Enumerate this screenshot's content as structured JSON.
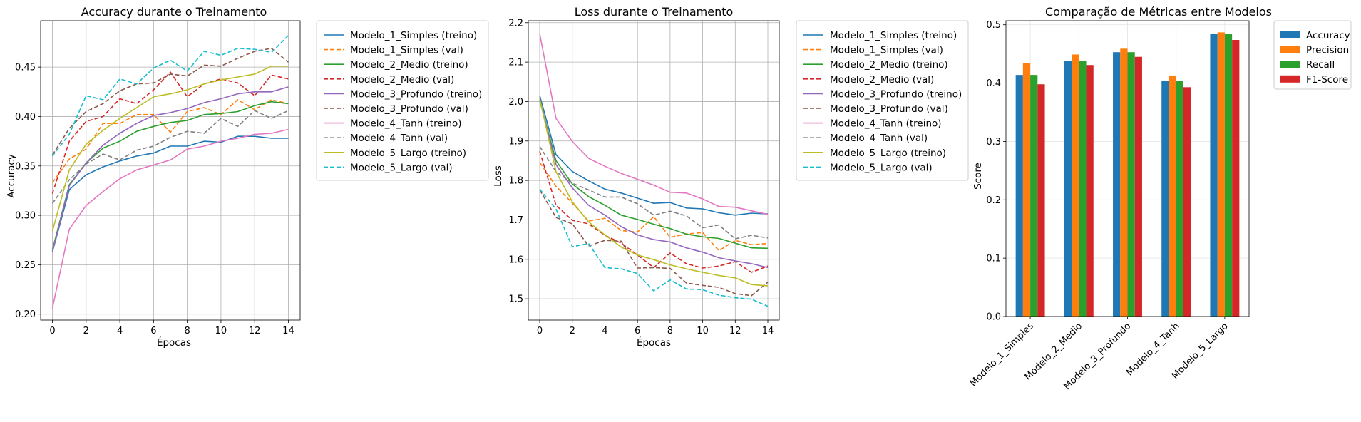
{
  "chart_data": [
    {
      "type": "line",
      "title": "Accuracy durante o Treinamento",
      "xlabel": "Épocas",
      "ylabel": "Accuracy",
      "xlim": [
        -0.7,
        14.7
      ],
      "ylim": [
        0.194,
        0.497
      ],
      "xticks": [
        0,
        2,
        4,
        6,
        8,
        10,
        12,
        14
      ],
      "yticks": [
        0.2,
        0.25,
        0.3,
        0.35,
        0.4,
        0.45
      ],
      "grid": true,
      "legend": "outside-right-top",
      "x": [
        0,
        1,
        2,
        3,
        4,
        5,
        6,
        7,
        8,
        9,
        10,
        11,
        12,
        13,
        14
      ],
      "series": [
        {
          "name": "Modelo_1_Simples (treino)",
          "color": "#1f77b4",
          "dash": "solid",
          "values": [
            0.263,
            0.326,
            0.341,
            0.349,
            0.355,
            0.36,
            0.363,
            0.37,
            0.37,
            0.375,
            0.374,
            0.38,
            0.38,
            0.378,
            0.378
          ]
        },
        {
          "name": "Modelo_1_Simples (val)",
          "color": "#ff7f0e",
          "dash": "dashed",
          "values": [
            0.333,
            0.357,
            0.367,
            0.393,
            0.393,
            0.402,
            0.402,
            0.384,
            0.405,
            0.409,
            0.402,
            0.417,
            0.407,
            0.417,
            0.413
          ]
        },
        {
          "name": "Modelo_2_Medio (treino)",
          "color": "#2ca02c",
          "dash": "solid",
          "values": [
            0.265,
            0.331,
            0.353,
            0.368,
            0.375,
            0.385,
            0.39,
            0.394,
            0.396,
            0.402,
            0.403,
            0.405,
            0.411,
            0.415,
            0.413
          ]
        },
        {
          "name": "Modelo_2_Medio (val)",
          "color": "#d62728",
          "dash": "dashed",
          "values": [
            0.322,
            0.375,
            0.395,
            0.4,
            0.418,
            0.413,
            0.427,
            0.445,
            0.42,
            0.433,
            0.438,
            0.434,
            0.421,
            0.442,
            0.438
          ]
        },
        {
          "name": "Modelo_3_Profundo (treino)",
          "color": "#9467bd",
          "dash": "solid",
          "values": [
            0.263,
            0.33,
            0.353,
            0.371,
            0.383,
            0.393,
            0.401,
            0.404,
            0.408,
            0.414,
            0.418,
            0.423,
            0.425,
            0.425,
            0.43
          ]
        },
        {
          "name": "Modelo_3_Profundo (val)",
          "color": "#8c564b",
          "dash": "dashed",
          "values": [
            0.361,
            0.388,
            0.405,
            0.413,
            0.426,
            0.433,
            0.434,
            0.443,
            0.441,
            0.452,
            0.451,
            0.459,
            0.466,
            0.469,
            0.455
          ]
        },
        {
          "name": "Modelo_4_Tanh (treino)",
          "color": "#e377c2",
          "dash": "solid",
          "values": [
            0.206,
            0.286,
            0.31,
            0.324,
            0.337,
            0.346,
            0.351,
            0.356,
            0.367,
            0.37,
            0.375,
            0.378,
            0.382,
            0.383,
            0.387
          ]
        },
        {
          "name": "Modelo_4_Tanh (val)",
          "color": "#7f7f7f",
          "dash": "dashed",
          "values": [
            0.312,
            0.336,
            0.352,
            0.362,
            0.356,
            0.366,
            0.37,
            0.379,
            0.385,
            0.383,
            0.398,
            0.39,
            0.406,
            0.398,
            0.406
          ]
        },
        {
          "name": "Modelo_5_Largo (treino)",
          "color": "#bcbd22",
          "dash": "solid",
          "values": [
            0.284,
            0.346,
            0.372,
            0.386,
            0.398,
            0.409,
            0.42,
            0.423,
            0.427,
            0.433,
            0.437,
            0.44,
            0.443,
            0.451,
            0.451
          ]
        },
        {
          "name": "Modelo_5_Largo (val)",
          "color": "#17becf",
          "dash": "dashed",
          "values": [
            0.36,
            0.382,
            0.421,
            0.417,
            0.438,
            0.433,
            0.449,
            0.457,
            0.446,
            0.466,
            0.462,
            0.469,
            0.468,
            0.465,
            0.482
          ]
        }
      ]
    },
    {
      "type": "line",
      "title": "Loss durante o Treinamento",
      "xlabel": "Épocas",
      "ylabel": "Loss",
      "xlim": [
        -0.7,
        14.7
      ],
      "ylim": [
        1.446,
        2.205
      ],
      "xticks": [
        0,
        2,
        4,
        6,
        8,
        10,
        12,
        14
      ],
      "yticks": [
        1.5,
        1.6,
        1.7,
        1.8,
        1.9,
        2.0,
        2.1,
        2.2
      ],
      "grid": true,
      "legend": "outside-right-top",
      "x": [
        0,
        1,
        2,
        3,
        4,
        5,
        6,
        7,
        8,
        9,
        10,
        11,
        12,
        13,
        14
      ],
      "series": [
        {
          "name": "Modelo_1_Simples (treino)",
          "color": "#1f77b4",
          "dash": "solid",
          "values": [
            2.015,
            1.865,
            1.823,
            1.799,
            1.778,
            1.768,
            1.755,
            1.742,
            1.744,
            1.73,
            1.728,
            1.718,
            1.712,
            1.717,
            1.715
          ]
        },
        {
          "name": "Modelo_1_Simples (val)",
          "color": "#ff7f0e",
          "dash": "dashed",
          "values": [
            1.846,
            1.785,
            1.743,
            1.697,
            1.704,
            1.673,
            1.669,
            1.708,
            1.656,
            1.664,
            1.668,
            1.622,
            1.648,
            1.637,
            1.64
          ]
        },
        {
          "name": "Modelo_2_Medio (treino)",
          "color": "#2ca02c",
          "dash": "solid",
          "values": [
            2.003,
            1.85,
            1.791,
            1.759,
            1.737,
            1.712,
            1.701,
            1.689,
            1.678,
            1.664,
            1.657,
            1.653,
            1.641,
            1.629,
            1.628
          ]
        },
        {
          "name": "Modelo_2_Medio (val)",
          "color": "#d62728",
          "dash": "dashed",
          "values": [
            1.874,
            1.737,
            1.699,
            1.69,
            1.661,
            1.641,
            1.611,
            1.579,
            1.616,
            1.589,
            1.578,
            1.583,
            1.594,
            1.567,
            1.583
          ]
        },
        {
          "name": "Modelo_3_Profundo (treino)",
          "color": "#9467bd",
          "dash": "solid",
          "values": [
            2.005,
            1.84,
            1.781,
            1.737,
            1.712,
            1.683,
            1.662,
            1.65,
            1.644,
            1.629,
            1.618,
            1.604,
            1.596,
            1.589,
            1.579
          ]
        },
        {
          "name": "Modelo_3_Profundo (val)",
          "color": "#8c564b",
          "dash": "dashed",
          "values": [
            1.776,
            1.706,
            1.69,
            1.634,
            1.648,
            1.646,
            1.578,
            1.579,
            1.577,
            1.54,
            1.534,
            1.529,
            1.513,
            1.508,
            1.542
          ]
        },
        {
          "name": "Modelo_4_Tanh (treino)",
          "color": "#e377c2",
          "dash": "solid",
          "values": [
            2.172,
            1.957,
            1.899,
            1.856,
            1.836,
            1.818,
            1.803,
            1.788,
            1.77,
            1.768,
            1.753,
            1.734,
            1.732,
            1.723,
            1.714
          ]
        },
        {
          "name": "Modelo_4_Tanh (val)",
          "color": "#7f7f7f",
          "dash": "dashed",
          "values": [
            1.886,
            1.822,
            1.793,
            1.776,
            1.758,
            1.758,
            1.741,
            1.712,
            1.722,
            1.71,
            1.68,
            1.687,
            1.652,
            1.661,
            1.654
          ]
        },
        {
          "name": "Modelo_5_Largo (treino)",
          "color": "#bcbd22",
          "dash": "solid",
          "values": [
            2.008,
            1.822,
            1.746,
            1.695,
            1.662,
            1.631,
            1.611,
            1.599,
            1.586,
            1.576,
            1.567,
            1.559,
            1.553,
            1.536,
            1.533
          ]
        },
        {
          "name": "Modelo_5_Largo (val)",
          "color": "#17becf",
          "dash": "dashed",
          "values": [
            1.778,
            1.727,
            1.632,
            1.64,
            1.579,
            1.576,
            1.564,
            1.52,
            1.548,
            1.525,
            1.523,
            1.509,
            1.503,
            1.499,
            1.481
          ]
        }
      ]
    },
    {
      "type": "bar",
      "title": "Comparação de Métricas entre Modelos",
      "xlabel": "",
      "ylabel": "Score",
      "ylim": [
        0,
        0.507
      ],
      "yticks": [
        0.0,
        0.1,
        0.2,
        0.3,
        0.4,
        0.5
      ],
      "grid": true,
      "legend": "outside-right-top",
      "categories": [
        "Modelo_1_Simples",
        "Modelo_2_Medio",
        "Modelo_3_Profundo",
        "Modelo_4_Tanh",
        "Modelo_5_Largo"
      ],
      "series": [
        {
          "name": "Accuracy",
          "color": "#1f77b4",
          "values": [
            0.414,
            0.438,
            0.453,
            0.404,
            0.484
          ]
        },
        {
          "name": "Precision",
          "color": "#ff7f0e",
          "values": [
            0.434,
            0.449,
            0.459,
            0.413,
            0.487
          ]
        },
        {
          "name": "Recall",
          "color": "#2ca02c",
          "values": [
            0.414,
            0.438,
            0.453,
            0.404,
            0.484
          ]
        },
        {
          "name": "F1-Score",
          "color": "#d62728",
          "values": [
            0.398,
            0.431,
            0.445,
            0.393,
            0.474
          ]
        }
      ]
    }
  ]
}
